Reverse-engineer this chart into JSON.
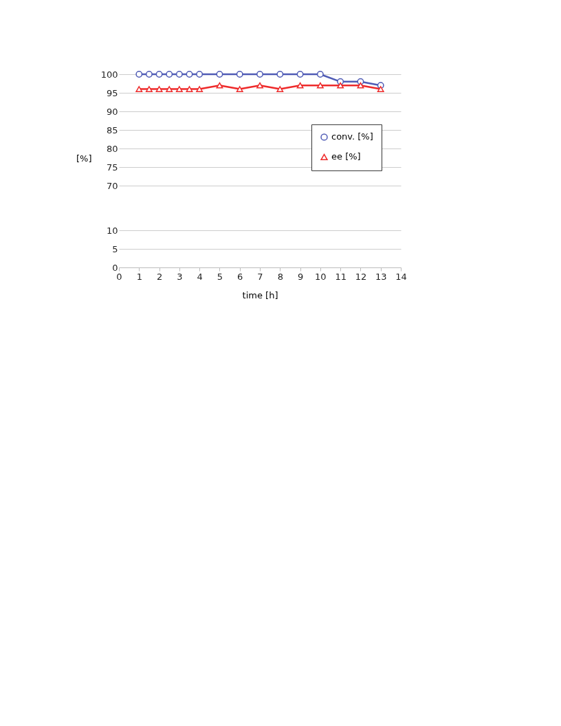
{
  "chart_data": [
    {
      "type": "line",
      "ylabel": "[%]",
      "x": [
        1,
        1.5,
        2,
        2.5,
        3,
        3.5,
        4,
        5,
        6,
        7,
        8,
        9,
        10,
        11,
        12,
        13
      ],
      "series": [
        {
          "name": "conv. [%]",
          "color": "#4f5bb5",
          "marker": "circle",
          "values": [
            100,
            100,
            100,
            100,
            100,
            100,
            100,
            100,
            100,
            100,
            100,
            100,
            100,
            98,
            98,
            97
          ]
        },
        {
          "name": "ee [%]",
          "color": "#ee2a2a",
          "marker": "triangle",
          "values": [
            96,
            96,
            96,
            96,
            96,
            96,
            96,
            97,
            96,
            97,
            96,
            97,
            97,
            97,
            97,
            96
          ]
        }
      ],
      "xlim": [
        0,
        14
      ],
      "ylim": [
        70,
        100
      ],
      "yticks": [
        70,
        75,
        80,
        85,
        90,
        95,
        100
      ],
      "tick_labels": "y",
      "grid": "y",
      "legend": "right",
      "line_style": "solid"
    },
    {
      "type": "line",
      "xlabel": "time [h]",
      "xlim": [
        0,
        14
      ],
      "xticks": [
        0,
        1,
        2,
        3,
        4,
        5,
        6,
        7,
        8,
        9,
        10,
        11,
        12,
        13,
        14
      ],
      "ylim": [
        0,
        10
      ],
      "yticks": [
        0,
        5,
        10
      ],
      "grid": "y"
    }
  ]
}
